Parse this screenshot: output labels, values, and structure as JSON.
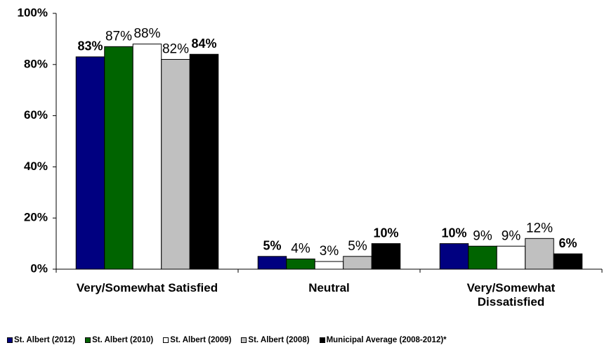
{
  "chart_data": {
    "type": "bar",
    "categories": [
      "Very/Somewhat Satisfied",
      "Neutral",
      "Very/Somewhat Dissatisfied"
    ],
    "series": [
      {
        "name": "St. Albert (2012)",
        "color": "#000080",
        "label_bold": true,
        "values": [
          83,
          5,
          10
        ],
        "value_labels": [
          "83%",
          "5%",
          "10%"
        ]
      },
      {
        "name": "St. Albert (2010)",
        "color": "#006400",
        "label_bold": false,
        "values": [
          87,
          4,
          9
        ],
        "value_labels": [
          "87%",
          "4%",
          "9%"
        ]
      },
      {
        "name": "St. Albert (2009)",
        "color": "#ffffff",
        "label_bold": false,
        "values": [
          88,
          3,
          9
        ],
        "value_labels": [
          "88%",
          "3%",
          "9%"
        ]
      },
      {
        "name": "St. Albert (2008)",
        "color": "#c0c0c0",
        "label_bold": false,
        "values": [
          82,
          5,
          12
        ],
        "value_labels": [
          "82%",
          "5%",
          "12%"
        ]
      },
      {
        "name": "Municipal Average (2008-2012)*",
        "color": "#000000",
        "label_bold": true,
        "values": [
          84,
          10,
          6
        ],
        "value_labels": [
          "84%",
          "10%",
          "6%"
        ]
      }
    ],
    "ylim": [
      0,
      100
    ],
    "yticks": [
      {
        "value": 0,
        "label": "0%"
      },
      {
        "value": 20,
        "label": "20%"
      },
      {
        "value": 40,
        "label": "40%"
      },
      {
        "value": 60,
        "label": "60%"
      },
      {
        "value": 80,
        "label": "80%"
      },
      {
        "value": 100,
        "label": "100%"
      }
    ],
    "grid": false,
    "legend": "bottom"
  }
}
